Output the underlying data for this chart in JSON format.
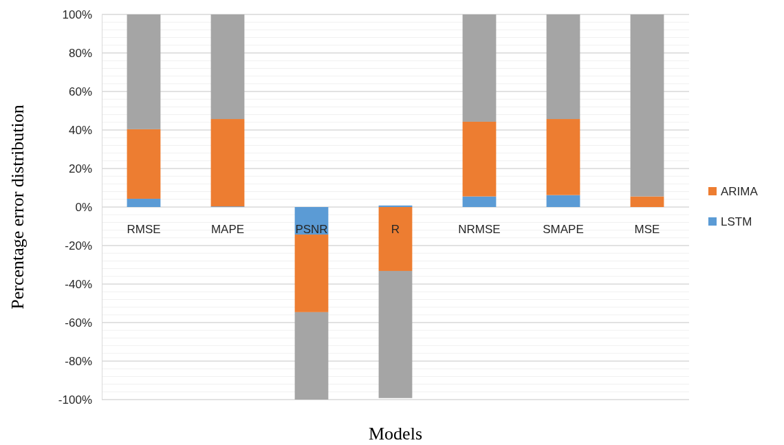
{
  "chart_data": {
    "type": "bar",
    "stacked": true,
    "xlabel": "Models",
    "ylabel": "Percentage error distribution",
    "categories": [
      "RMSE",
      "MAPE",
      "PSNR",
      "R",
      "NRMSE",
      "SMAPE",
      "MSE"
    ],
    "series": [
      {
        "name": "LSTM",
        "color": "#5b9bd5",
        "values": [
          4.3,
          0.3,
          -14.3,
          0.8,
          5.5,
          6.2,
          0
        ]
      },
      {
        "name": "ARIMA",
        "color": "#ed7d31",
        "values": [
          36.1,
          45.4,
          -40.3,
          -33.2,
          38.8,
          39.5,
          5.5
        ]
      },
      {
        "color": "#a5a5a5",
        "values": [
          59.6,
          54.3,
          -45.4,
          -66,
          55.7,
          54.3,
          94.5
        ]
      }
    ],
    "ylim": [
      -100,
      100
    ],
    "yticks": [
      {
        "value": -100,
        "label": "-100%"
      },
      {
        "value": -96,
        "label": null
      },
      {
        "value": -92,
        "label": null
      },
      {
        "value": -88,
        "label": null
      },
      {
        "value": -84,
        "label": null
      },
      {
        "value": -80,
        "label": "-80%"
      },
      {
        "value": -76,
        "label": null
      },
      {
        "value": -72,
        "label": null
      },
      {
        "value": -68,
        "label": null
      },
      {
        "value": -64,
        "label": null
      },
      {
        "value": -60,
        "label": "-60%"
      },
      {
        "value": -56,
        "label": null
      },
      {
        "value": -52,
        "label": null
      },
      {
        "value": -48,
        "label": null
      },
      {
        "value": -44,
        "label": null
      },
      {
        "value": -40,
        "label": "-40%"
      },
      {
        "value": -36,
        "label": null
      },
      {
        "value": -32,
        "label": null
      },
      {
        "value": -28,
        "label": null
      },
      {
        "value": -24,
        "label": null
      },
      {
        "value": -20,
        "label": "-20%"
      },
      {
        "value": -16,
        "label": null
      },
      {
        "value": -12,
        "label": null
      },
      {
        "value": -8,
        "label": null
      },
      {
        "value": -4,
        "label": null
      },
      {
        "value": 0,
        "label": "0%"
      },
      {
        "value": 4,
        "label": null
      },
      {
        "value": 8,
        "label": null
      },
      {
        "value": 12,
        "label": null
      },
      {
        "value": 16,
        "label": null
      },
      {
        "value": 20,
        "label": "20%"
      },
      {
        "value": 24,
        "label": null
      },
      {
        "value": 28,
        "label": null
      },
      {
        "value": 32,
        "label": null
      },
      {
        "value": 36,
        "label": null
      },
      {
        "value": 40,
        "label": "40%"
      },
      {
        "value": 44,
        "label": null
      },
      {
        "value": 48,
        "label": null
      },
      {
        "value": 52,
        "label": null
      },
      {
        "value": 56,
        "label": null
      },
      {
        "value": 60,
        "label": "60%"
      },
      {
        "value": 64,
        "label": null
      },
      {
        "value": 68,
        "label": null
      },
      {
        "value": 72,
        "label": null
      },
      {
        "value": 76,
        "label": null
      },
      {
        "value": 80,
        "label": "80%"
      },
      {
        "value": 84,
        "label": null
      },
      {
        "value": 88,
        "label": null
      },
      {
        "value": 92,
        "label": null
      },
      {
        "value": 96,
        "label": null
      },
      {
        "value": 100,
        "label": "100%"
      }
    ],
    "grid": "y",
    "legend": "right"
  }
}
